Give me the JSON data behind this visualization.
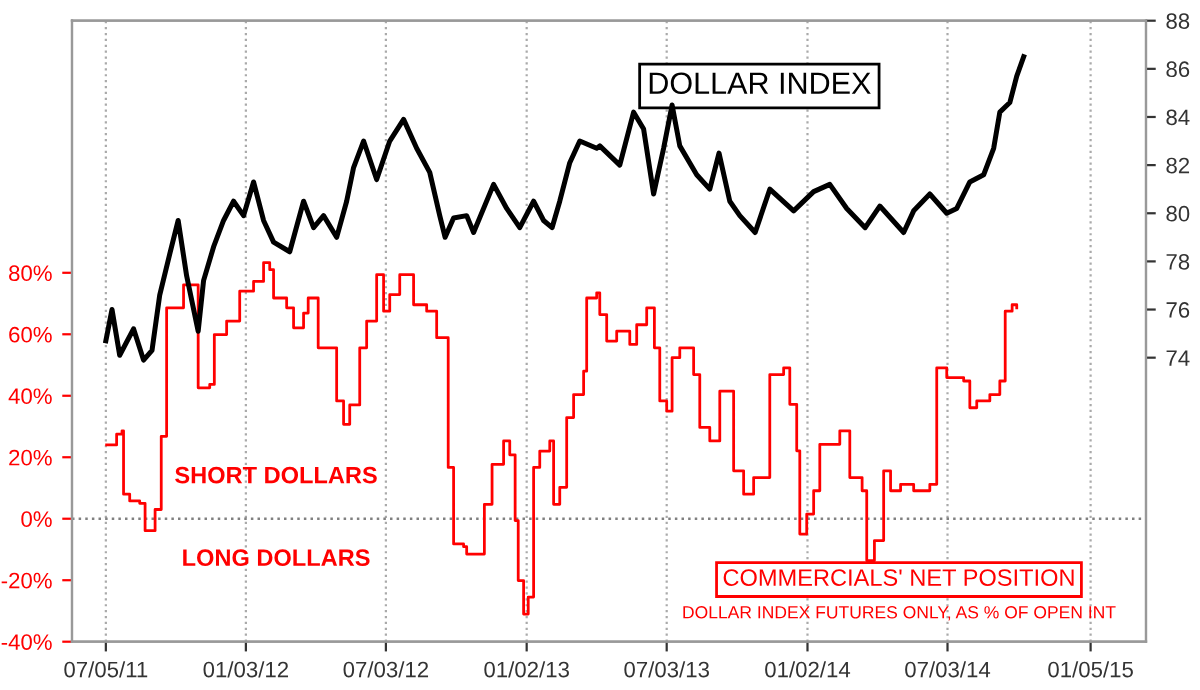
{
  "chart_data": {
    "type": "line",
    "annotations": [
      "DOLLAR INDEX FUTURES ONLY, AS % OF OPEN INT",
      "SHORT DOLLARS",
      "LONG DOLLARS"
    ],
    "series": [
      {
        "name": "DOLLAR INDEX",
        "color": "#000000",
        "axis": "y2",
        "x": [
          "2011-07-05",
          "2011-07-13",
          "2011-07-23",
          "2011-08-10",
          "2011-08-23",
          "2011-09-03",
          "2011-09-13",
          "2011-09-26",
          "2011-10-07",
          "2011-10-18",
          "2011-11-02",
          "2011-11-09",
          "2011-11-22",
          "2011-12-05",
          "2011-12-18",
          "2011-12-31",
          "2012-01-13",
          "2012-01-26",
          "2012-02-08",
          "2012-02-29",
          "2012-03-18",
          "2012-03-31",
          "2012-04-13",
          "2012-04-30",
          "2012-05-13",
          "2012-05-22",
          "2012-06-04",
          "2012-06-21",
          "2012-07-08",
          "2012-07-26",
          "2012-08-12",
          "2012-08-29",
          "2012-09-11",
          "2012-09-18",
          "2012-09-29",
          "2012-10-16",
          "2012-10-25",
          "2012-11-20",
          "2012-12-07",
          "2012-12-24",
          "2013-01-11",
          "2013-01-24",
          "2013-02-04",
          "2013-02-14",
          "2013-02-27",
          "2013-03-12",
          "2013-04-03",
          "2013-04-07",
          "2013-05-03",
          "2013-05-21",
          "2013-06-03",
          "2013-06-16",
          "2013-06-29",
          "2013-07-10",
          "2013-07-20",
          "2013-08-11",
          "2013-08-28",
          "2013-09-09",
          "2013-09-23",
          "2013-10-06",
          "2013-10-26",
          "2013-11-14",
          "2013-12-15",
          "2014-01-10",
          "2014-01-31",
          "2014-02-22",
          "2014-03-18",
          "2014-04-06",
          "2014-05-07",
          "2014-05-20",
          "2014-06-10",
          "2014-07-02",
          "2014-07-15",
          "2014-08-01",
          "2014-08-19",
          "2014-09-01",
          "2014-09-09",
          "2014-09-22",
          "2014-10-01",
          "2014-10-10"
        ],
        "values": [
          74.7,
          76.0,
          74.1,
          75.2,
          73.9,
          74.3,
          76.6,
          78.3,
          79.7,
          77.4,
          75.1,
          77.2,
          78.6,
          79.7,
          80.5,
          79.9,
          81.3,
          79.7,
          78.8,
          78.4,
          80.5,
          79.4,
          79.9,
          79.0,
          80.5,
          81.9,
          83.0,
          81.4,
          83.0,
          83.9,
          82.7,
          81.7,
          79.9,
          79.0,
          79.8,
          79.9,
          79.2,
          81.2,
          80.2,
          79.4,
          80.5,
          79.7,
          79.4,
          80.5,
          82.1,
          83.0,
          82.7,
          82.8,
          82.0,
          84.2,
          83.5,
          80.8,
          82.7,
          84.5,
          82.8,
          81.6,
          81.0,
          82.5,
          80.5,
          79.9,
          79.2,
          81.0,
          80.1,
          80.9,
          81.2,
          80.2,
          79.4,
          80.3,
          79.2,
          80.1,
          80.8,
          80.0,
          80.2,
          81.3,
          81.6,
          82.7,
          84.2,
          84.6,
          85.7,
          86.5
        ]
      },
      {
        "name": "COMMERCIALS' NET POSITION",
        "color": "#ff0000",
        "type": "step",
        "x": [
          "2011-07-06",
          "2011-07-19",
          "2011-07-26",
          "2011-07-28",
          "2011-08-05",
          "2011-08-18",
          "2011-08-25",
          "2011-09-07",
          "2011-09-15",
          "2011-09-22",
          "2011-10-14",
          "2011-11-02",
          "2011-11-17",
          "2011-11-23",
          "2011-12-09",
          "2011-12-26",
          "2012-01-13",
          "2012-01-26",
          "2012-02-03",
          "2012-02-08",
          "2012-02-25",
          "2012-03-05",
          "2012-03-18",
          "2012-03-24",
          "2012-04-06",
          "2012-04-24",
          "2012-04-30",
          "2012-05-09",
          "2012-05-17",
          "2012-05-30",
          "2012-06-08",
          "2012-06-21",
          "2012-06-30",
          "2012-07-08",
          "2012-07-21",
          "2012-08-08",
          "2012-08-25",
          "2012-09-07",
          "2012-09-22",
          "2012-09-29",
          "2012-10-12",
          "2012-10-16",
          "2012-10-31",
          "2012-11-08",
          "2012-11-18",
          "2012-12-03",
          "2012-12-11",
          "2012-12-18",
          "2012-12-22",
          "2012-12-29",
          "2013-01-04",
          "2013-01-11",
          "2013-01-19",
          "2013-02-01",
          "2013-02-06",
          "2013-02-14",
          "2013-02-23",
          "2013-03-04",
          "2013-03-17",
          "2013-03-21",
          "2013-04-03",
          "2013-04-07",
          "2013-04-16",
          "2013-04-29",
          "2013-05-16",
          "2013-05-25",
          "2013-06-07",
          "2013-06-17",
          "2013-06-24",
          "2013-07-03",
          "2013-07-10",
          "2013-07-20",
          "2013-08-07",
          "2013-08-15",
          "2013-08-28",
          "2013-09-10",
          "2013-09-22",
          "2013-09-28",
          "2013-10-11",
          "2013-10-24",
          "2013-11-06",
          "2013-11-14",
          "2013-12-02",
          "2013-12-10",
          "2013-12-19",
          "2013-12-23",
          "2014-01-01",
          "2014-01-10",
          "2014-01-18",
          "2014-01-31",
          "2014-02-13",
          "2014-02-26",
          "2014-03-14",
          "2014-03-20",
          "2014-03-30",
          "2014-04-11",
          "2014-04-20",
          "2014-05-03",
          "2014-05-20",
          "2014-06-10",
          "2014-06-19",
          "2014-07-02",
          "2014-07-24",
          "2014-08-01",
          "2014-08-10",
          "2014-08-27",
          "2014-09-09",
          "2014-09-16",
          "2014-09-25",
          "2014-10-01"
        ],
        "values": [
          24,
          27.5,
          28.6,
          8,
          5.8,
          5,
          -3.9,
          3,
          26.8,
          68.6,
          76.1,
          42.6,
          43.7,
          59.9,
          64.3,
          74,
          77.2,
          83.3,
          81,
          71.8,
          68.6,
          62.1,
          66.9,
          71.8,
          55.6,
          55.6,
          38.3,
          30.7,
          37,
          55.6,
          64.3,
          79.4,
          67.5,
          72.9,
          79.4,
          69.6,
          67.5,
          58.9,
          16.7,
          -8.2,
          -9.1,
          -11.5,
          -11.5,
          4.7,
          17.7,
          25.3,
          20.8,
          -0.6,
          -20.1,
          -31,
          -25.5,
          16.7,
          22,
          25.3,
          4.7,
          10.2,
          32.9,
          40.4,
          48,
          71.8,
          73.5,
          66.4,
          57.8,
          61,
          56.7,
          63.1,
          68.6,
          55.6,
          38.3,
          35,
          52.4,
          55.6,
          46.9,
          29.7,
          25.3,
          41.5,
          41.5,
          15.6,
          8,
          13.4,
          13.4,
          46.9,
          49.1,
          37.2,
          22.1,
          -5,
          1.5,
          9.1,
          24.2,
          24.2,
          28.6,
          13.4,
          9.1,
          -13.6,
          -7.1,
          15.6,
          9.1,
          11.2,
          9.1,
          11.2,
          49.1,
          45.9,
          44.8,
          36.1,
          38.3,
          40.4,
          44.8,
          67.5,
          69.6,
          68.6
        ]
      }
    ],
    "xlim": [
      "2011-05-22",
      "2015-03-18"
    ],
    "xticks": [
      {
        "value": "2011-07-05",
        "label": "07/05/11"
      },
      {
        "value": "2012-01-03",
        "label": "01/03/12"
      },
      {
        "value": "2012-07-03",
        "label": "07/03/12"
      },
      {
        "value": "2013-01-02",
        "label": "01/02/13"
      },
      {
        "value": "2013-07-03",
        "label": "07/03/13"
      },
      {
        "value": "2014-01-02",
        "label": "01/02/14"
      },
      {
        "value": "2014-07-03",
        "label": "07/03/14"
      },
      {
        "value": "2015-01-05",
        "label": "01/05/15"
      }
    ],
    "ylim": [
      -40,
      162
    ],
    "yticks": [
      {
        "value": -40,
        "label": "-40%"
      },
      {
        "value": -20,
        "label": "-20%"
      },
      {
        "value": 0,
        "label": "0%"
      },
      {
        "value": 20,
        "label": "20%"
      },
      {
        "value": 40,
        "label": "40%"
      },
      {
        "value": 60,
        "label": "60%"
      },
      {
        "value": 80,
        "label": "80%"
      }
    ],
    "y2lim": [
      62.2,
      88
    ],
    "y2ticks": [
      74,
      76,
      78,
      80,
      82,
      84,
      86,
      88
    ],
    "ref_lines": [
      {
        "axis": "y",
        "value": 0,
        "label": null,
        "color": "#808080",
        "line_style": "dotted"
      }
    ],
    "grid": "x",
    "legend": false,
    "line_style": "solid",
    "marker": "none"
  }
}
